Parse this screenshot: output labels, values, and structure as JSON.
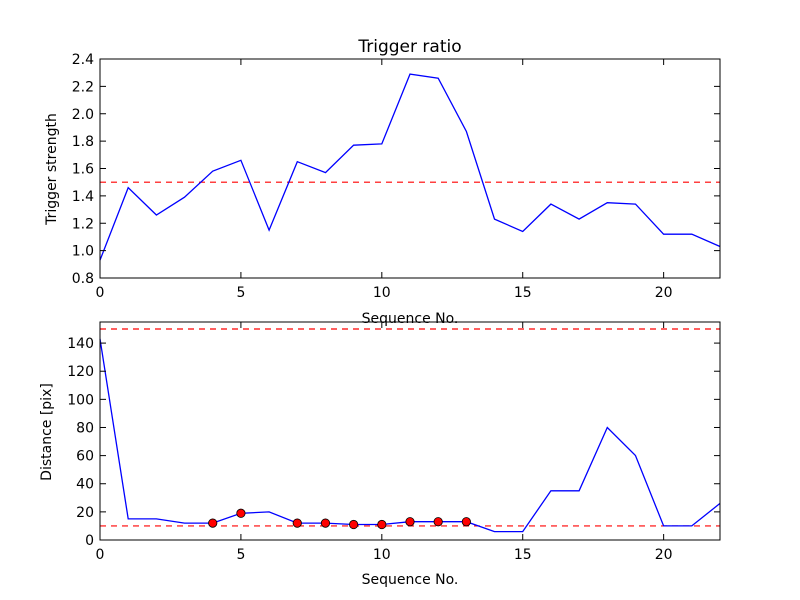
{
  "chart_data": [
    {
      "type": "line",
      "title": "Trigger ratio",
      "xlabel": "Sequence No.",
      "ylabel": "Trigger strength",
      "xlim": [
        0,
        22
      ],
      "ylim": [
        0.8,
        2.4
      ],
      "xticks": [
        "0",
        "5",
        "10",
        "15",
        "20"
      ],
      "xtick_values": [
        0,
        5,
        10,
        15,
        20
      ],
      "yticks": [
        "0.8",
        "1.0",
        "1.2",
        "1.4",
        "1.6",
        "1.8",
        "2.0",
        "2.2",
        "2.4"
      ],
      "ytick_values": [
        0.8,
        1.0,
        1.2,
        1.4,
        1.6,
        1.8,
        2.0,
        2.2,
        2.4
      ],
      "line_color": "#0000ff",
      "threshold_color": "#ff0000",
      "thresholds": [
        1.5
      ],
      "series": [
        {
          "x": [
            0,
            1,
            2,
            3,
            4,
            5,
            6,
            7,
            8,
            9,
            10,
            11,
            12,
            13,
            14,
            15,
            16,
            17,
            18,
            19,
            20,
            21,
            22
          ],
          "values": [
            0.93,
            1.46,
            1.26,
            1.39,
            1.58,
            1.66,
            1.15,
            1.65,
            1.57,
            1.77,
            1.78,
            2.29,
            2.26,
            1.87,
            1.23,
            1.14,
            1.34,
            1.23,
            1.35,
            1.34,
            1.12,
            1.12,
            1.03
          ]
        }
      ]
    },
    {
      "type": "line",
      "title": "",
      "xlabel": "Sequence No.",
      "ylabel": "Distance [pix]",
      "xlim": [
        0,
        22
      ],
      "ylim": [
        0,
        155
      ],
      "xticks": [
        "0",
        "5",
        "10",
        "15",
        "20"
      ],
      "xtick_values": [
        0,
        5,
        10,
        15,
        20
      ],
      "yticks": [
        "0",
        "20",
        "40",
        "60",
        "80",
        "100",
        "120",
        "140"
      ],
      "ytick_values": [
        0,
        20,
        40,
        60,
        80,
        100,
        120,
        140
      ],
      "line_color": "#0000ff",
      "threshold_color": "#ff0000",
      "marker_color": "#ff0000",
      "thresholds": [
        10,
        150
      ],
      "series": [
        {
          "x": [
            0,
            1,
            2,
            3,
            4,
            5,
            6,
            7,
            8,
            9,
            10,
            11,
            12,
            13,
            14,
            15,
            16,
            17,
            18,
            19,
            20,
            21,
            22
          ],
          "values": [
            143,
            15,
            15,
            12,
            12,
            19,
            20,
            12,
            12,
            11,
            11,
            13,
            13,
            13,
            6,
            6,
            35,
            35,
            80,
            60,
            10,
            10,
            26
          ]
        }
      ],
      "markers": {
        "x": [
          4,
          5,
          7,
          8,
          9,
          10,
          11,
          12,
          13
        ],
        "y": [
          12,
          19,
          12,
          12,
          11,
          11,
          13,
          13,
          13
        ]
      }
    }
  ]
}
